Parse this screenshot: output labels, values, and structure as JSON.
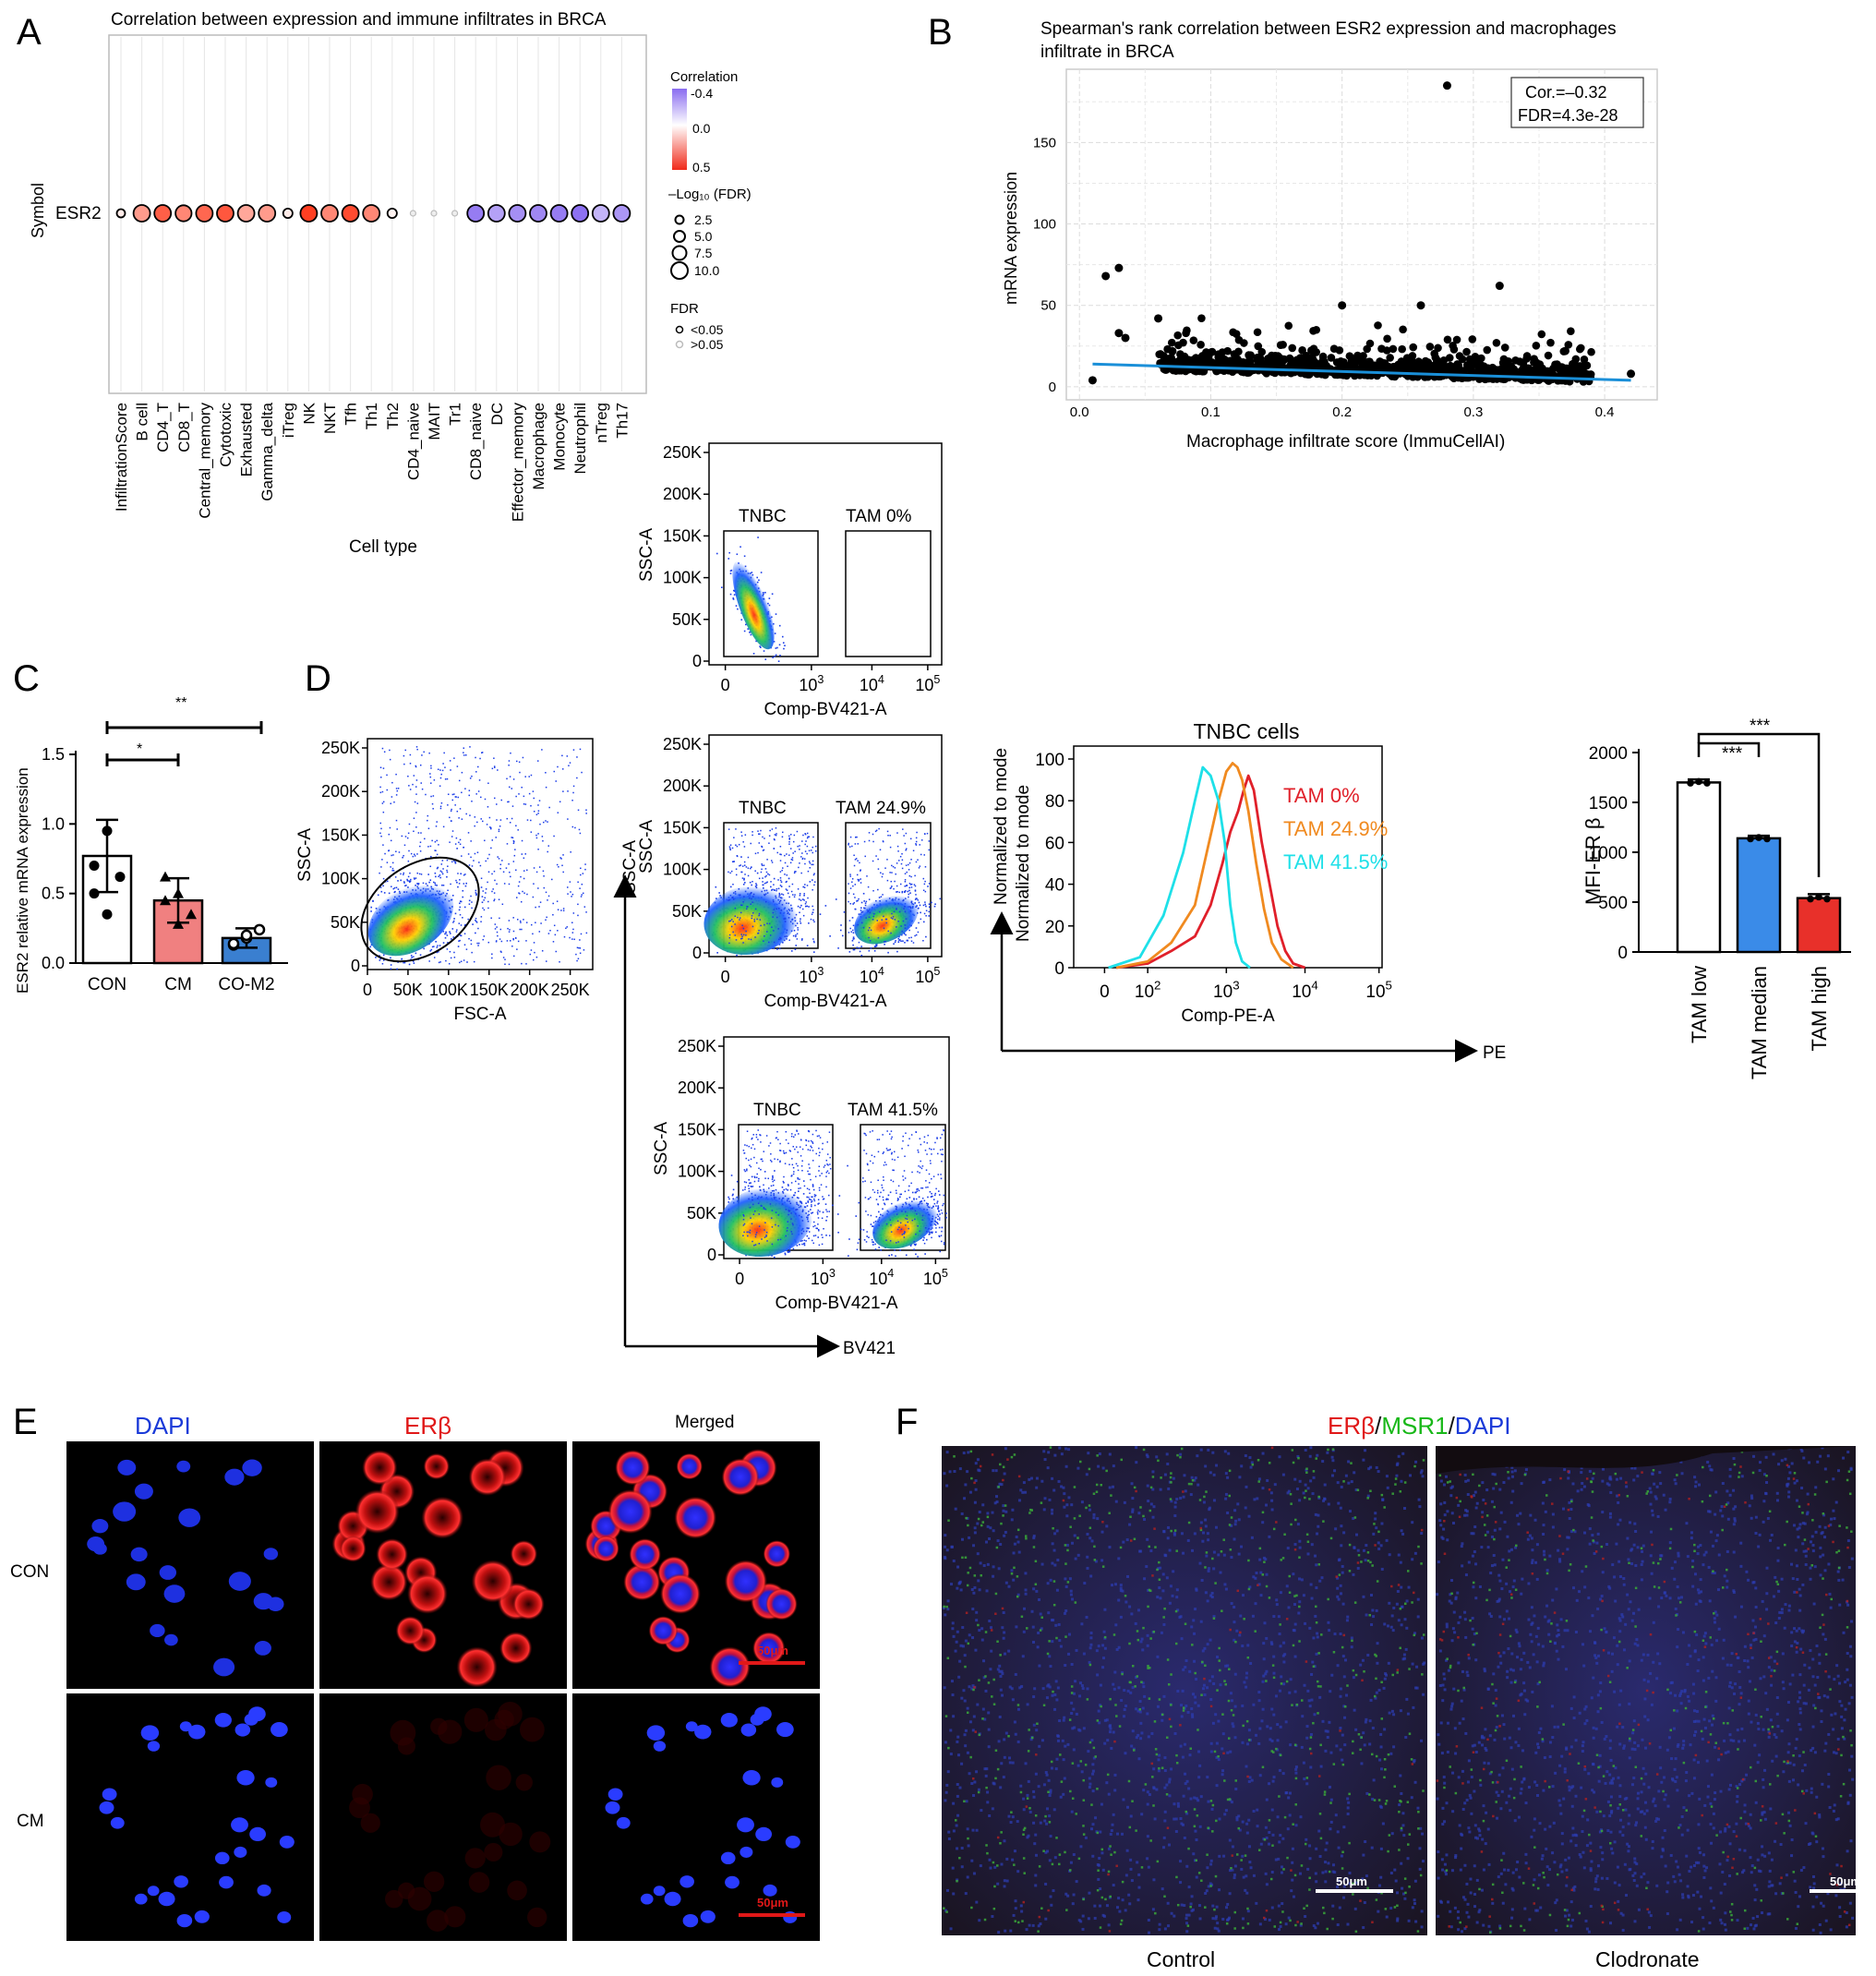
{
  "panelA": {
    "label": "A",
    "title": "Correlation between expression and immune infiltrates in BRCA",
    "y_axis_label": "Symbol",
    "row_label": "ESR2",
    "x_axis_label": "Cell type",
    "legend_corr_title": "Correlation",
    "legend_corr_ticks": [
      "-0.4",
      "0.0",
      "0.5"
    ],
    "legend_size_title": "–Log₁₀ (FDR)",
    "legend_size_items": [
      "2.5",
      "5.0",
      "7.5",
      "10.0"
    ],
    "legend_fdr_title": "FDR",
    "legend_fdr_items": [
      "<0.05",
      ">0.05"
    ]
  },
  "panelB": {
    "label": "B",
    "title_line1": "Spearman's rank correlation between ESR2 expression and macrophages",
    "title_line2": "infiltrate in BRCA",
    "stat_line1": "Cor.=–0.32",
    "stat_line2": "FDR=4.3e-28"
  },
  "panelC": {
    "label": "C",
    "sig_top": "**",
    "sig_mid": "*"
  },
  "panelD": {
    "label": "D",
    "axis_bv421": "BV421",
    "axis_pe": "PE",
    "ssc_flipped_label": "SSC-A",
    "gate_tnbc": "TNBC",
    "gate_tam0": "TAM 0%",
    "gate_tam249": "TAM 24.9%",
    "gate_tam415": "TAM 41.5%",
    "comp_bv421": "Comp-BV421-A",
    "ssc_a": "SSC-A",
    "fsc_a": "FSC-A"
  },
  "panelE": {
    "label": "E",
    "col_dapi": "DAPI",
    "col_erb": "ERβ",
    "col_merged": "Merged",
    "row_con": "CON",
    "row_cm": "CM",
    "scalebar": "50μm"
  },
  "panelF": {
    "label": "F",
    "title_erb": "ERβ",
    "title_msr1": "MSR1",
    "title_dapi": "DAPI",
    "slash": "/",
    "caption_control": "Control",
    "caption_clodronate": "Clodronate",
    "scalebar": "50μm"
  },
  "chart_data": [
    {
      "id": "A",
      "type": "scatter",
      "row": "ESR2",
      "x_label": "Cell type",
      "y_label": "Symbol",
      "categories": [
        "InfiltrationScore",
        "B cell",
        "CD4_T",
        "CD8_T",
        "Central_memory",
        "Cytotoxic",
        "Exhausted",
        "Gamma_delta",
        "iTreg",
        "NK",
        "NKT",
        "Tfh",
        "Th1",
        "Th2",
        "CD4_naive",
        "MAIT",
        "Tr1",
        "CD8_naive",
        "DC",
        "Effector_memory",
        "Macrophage",
        "Monocyte",
        "Neutrophil",
        "nTreg",
        "Th17"
      ],
      "correlation": [
        0.05,
        0.25,
        0.4,
        0.3,
        0.38,
        0.42,
        0.22,
        0.25,
        0.05,
        0.48,
        0.3,
        0.45,
        0.3,
        0.03,
        0.0,
        0.0,
        0.0,
        -0.35,
        -0.25,
        -0.3,
        -0.32,
        -0.35,
        -0.38,
        -0.2,
        -0.28
      ],
      "neglog10_fdr": [
        2.5,
        10.0,
        10.0,
        9.5,
        10.0,
        10.0,
        10.0,
        10.0,
        3.5,
        10.0,
        10.0,
        10.0,
        10.0,
        3.5,
        1.0,
        2.0,
        1.2,
        10.0,
        10.0,
        10.0,
        10.0,
        10.0,
        10.0,
        10.0,
        10.0
      ],
      "fdr_sig": [
        true,
        true,
        true,
        true,
        true,
        true,
        true,
        true,
        true,
        true,
        true,
        true,
        true,
        true,
        false,
        false,
        false,
        true,
        true,
        true,
        true,
        true,
        true,
        true,
        true
      ],
      "legend_correlation": [
        "-0.4",
        "0.0",
        "0.5"
      ],
      "legend_size": [
        "2.5",
        "5.0",
        "7.5",
        "10.0"
      ],
      "legend_fdr": [
        "<0.05",
        ">0.05"
      ]
    },
    {
      "id": "B",
      "type": "scatter",
      "x_label": "Macrophage infiltrate score (ImmuCellAI)",
      "y_label": "mRNA expression",
      "x_ticks": [
        "0.0",
        "0.1",
        "0.2",
        "0.3",
        "0.4"
      ],
      "y_ticks": [
        "0",
        "50",
        "100",
        "150"
      ],
      "xlim": [
        -0.01,
        0.44
      ],
      "ylim": [
        -8,
        195
      ],
      "grid": true,
      "highlighted_points": [
        [
          0.28,
          185
        ],
        [
          0.02,
          68
        ],
        [
          0.03,
          73
        ],
        [
          0.32,
          62
        ],
        [
          0.06,
          42
        ],
        [
          0.03,
          33
        ],
        [
          0.2,
          50
        ],
        [
          0.26,
          50
        ],
        [
          0.035,
          30
        ],
        [
          0.01,
          4
        ],
        [
          0.42,
          8
        ],
        [
          0.37,
          22
        ]
      ],
      "trend_line": {
        "x": [
          0.01,
          0.42
        ],
        "y": [
          14,
          4
        ]
      },
      "annotation": [
        "Cor.=–0.32",
        "FDR=4.3e-28"
      ]
    },
    {
      "id": "C",
      "type": "bar",
      "y_label": "ESR2 relative mRNA expression",
      "categories": [
        "CON",
        "CM",
        "CO-M2"
      ],
      "values": [
        0.77,
        0.45,
        0.18
      ],
      "errors": [
        0.26,
        0.16,
        0.07
      ],
      "colors": [
        "#ffffff",
        "#f08080",
        "#3a7fd0"
      ],
      "points": [
        [
          0.7,
          0.95,
          0.62,
          0.5,
          0.35
        ],
        [
          0.62,
          0.5,
          0.35,
          0.45,
          0.28
        ],
        [
          0.13,
          0.18,
          0.24,
          0.14,
          0.2
        ]
      ],
      "y_ticks": [
        "0.0",
        "0.5",
        "1.0",
        "1.5"
      ],
      "ylim": [
        0,
        1.5
      ],
      "significance": [
        {
          "pair": [
            "CON",
            "CM"
          ],
          "label": "*"
        },
        {
          "pair": [
            "CON",
            "CO-M2"
          ],
          "label": "**"
        }
      ]
    },
    {
      "id": "D-flow-main",
      "type": "scatter",
      "x_label": "FSC-A",
      "y_label": "SSC-A",
      "x_ticks": [
        "0",
        "50K",
        "100K",
        "150K",
        "200K",
        "250K"
      ],
      "y_ticks": [
        "0",
        "50K",
        "100K",
        "150K",
        "200K",
        "250K"
      ]
    },
    {
      "id": "D-flow-tam0",
      "type": "scatter",
      "x_label": "Comp-BV421-A",
      "y_label": "SSC-A",
      "gates": [
        "TNBC",
        "TAM 0%"
      ],
      "x_ticks": [
        "0",
        "10^3",
        "10^4",
        "10^5"
      ],
      "y_ticks": [
        "0",
        "50K",
        "100K",
        "150K",
        "200K",
        "250K"
      ]
    },
    {
      "id": "D-flow-tam24.9",
      "type": "scatter",
      "x_label": "Comp-BV421-A",
      "y_label": "SSC-A",
      "gates": [
        "TNBC",
        "TAM 24.9%"
      ],
      "x_ticks": [
        "0",
        "10^3",
        "10^4",
        "10^5"
      ],
      "y_ticks": [
        "0",
        "50K",
        "100K",
        "150K",
        "200K",
        "250K"
      ]
    },
    {
      "id": "D-flow-tam41.5",
      "type": "scatter",
      "x_label": "Comp-BV421-A",
      "y_label": "SSC-A",
      "gates": [
        "TNBC",
        "TAM 41.5%"
      ],
      "x_ticks": [
        "0",
        "10^3",
        "10^4",
        "10^5"
      ],
      "y_ticks": [
        "0",
        "50K",
        "100K",
        "150K",
        "200K",
        "250K"
      ]
    },
    {
      "id": "D-histogram",
      "type": "line",
      "title": "TNBC cells",
      "x_label": "Comp-PE-A",
      "y_label": "Normalized to mode",
      "x_ticks": [
        "0",
        "10^2",
        "10^3",
        "10^4",
        "10^5"
      ],
      "y_ticks": [
        "0",
        "20",
        "40",
        "60",
        "80",
        "100"
      ],
      "ylim": [
        0,
        100
      ],
      "series": [
        {
          "name": "TAM 0%",
          "color": "#e0202a",
          "log_x": [
            1.6,
            2.0,
            2.3,
            2.6,
            2.8,
            2.95,
            3.05,
            3.15,
            3.22,
            3.28,
            3.35,
            3.45,
            3.55,
            3.65,
            3.75,
            3.85,
            4.0
          ],
          "y": [
            0,
            2,
            8,
            15,
            30,
            50,
            65,
            75,
            85,
            92,
            85,
            60,
            40,
            20,
            8,
            2,
            0
          ]
        },
        {
          "name": "TAM 24.9%",
          "color": "#f08a20",
          "log_x": [
            1.6,
            2.0,
            2.3,
            2.6,
            2.75,
            2.9,
            3.0,
            3.08,
            3.14,
            3.2,
            3.28,
            3.38,
            3.48,
            3.58,
            3.7,
            3.85
          ],
          "y": [
            0,
            3,
            12,
            30,
            55,
            80,
            94,
            98,
            96,
            90,
            75,
            50,
            28,
            12,
            4,
            0
          ]
        },
        {
          "name": "TAM 41.5%",
          "color": "#1ee0e8",
          "log_x": [
            1.5,
            1.9,
            2.2,
            2.45,
            2.6,
            2.7,
            2.8,
            2.9,
            2.98,
            3.05,
            3.12,
            3.2,
            3.3
          ],
          "y": [
            0,
            5,
            25,
            55,
            80,
            96,
            92,
            80,
            60,
            30,
            12,
            3,
            0
          ]
        }
      ]
    },
    {
      "id": "D-bar",
      "type": "bar",
      "y_label": "MFI-ER β",
      "categories": [
        "TAM low",
        "TAM median",
        "TAM high"
      ],
      "values": [
        1700,
        1140,
        540
      ],
      "errors": [
        30,
        25,
        40
      ],
      "colors": [
        "#ffffff",
        "#3a8be8",
        "#e8302a"
      ],
      "y_ticks": [
        "0",
        "500",
        "1000",
        "1500",
        "2000"
      ],
      "ylim": [
        0,
        2000
      ],
      "significance": [
        {
          "pair": [
            "TAM low",
            "TAM median"
          ],
          "label": "***"
        },
        {
          "pair": [
            "TAM low",
            "TAM high"
          ],
          "label": "***"
        }
      ]
    }
  ]
}
